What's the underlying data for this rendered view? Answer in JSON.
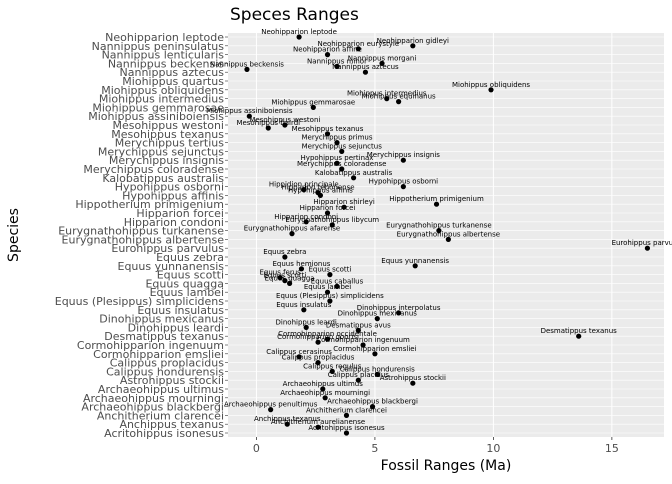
{
  "chart_data": {
    "type": "scatter",
    "title": "Speces Ranges",
    "xlabel": "Fossil Ranges (Ma)",
    "ylabel": "Species",
    "xlim": [
      -1.2,
      17.2
    ],
    "x_ticks": [
      0,
      5,
      10,
      15
    ],
    "grid": true,
    "legend": "none",
    "point_color": "#000000",
    "panel_color": "#ebebeb",
    "grid_color": "#ffffff",
    "categories": [
      "Neohipparion leptode",
      "Nannippus peninsulatus",
      "Nannippus lenticularis",
      "Nannippus beckensis",
      "Nannippus aztecus",
      "Miohippus quartus",
      "Miohippus obliquidens",
      "Miohippus intermedius",
      "Miohippus gemmarosae",
      "Miohippus assiniboiensis",
      "Mesohippus westoni",
      "Mesohippus texanus",
      "Merychippus tertius",
      "Merychippus sejunctus",
      "Merychippus insignis",
      "Merychippus coloradense",
      "Kalobatippus australis",
      "Hypohippus osborni",
      "Hypohippus affinis",
      "Hippotherium primigenium",
      "Hipparion forcei",
      "Hipparion condoni",
      "Eurygnathohippus turkanense",
      "Eurygnathohippus albertense",
      "Eurohippus parvulus",
      "Equus zebra",
      "Equus yunnanensis",
      "Equus scotti",
      "Equus quagga",
      "Equus lambei",
      "Equus (Plesippus) simplicidens",
      "Equus insulatus",
      "Dinohippus mexicanus",
      "Dinohippus leardi",
      "Desmatippus texanus",
      "Cormohipparion ingenuum",
      "Cormohipparion emsliei",
      "Calippus proplacidus",
      "Calippus hondurensis",
      "Astrohippus stockii",
      "Archaeohippus ultimus",
      "Archaeohippus mourningi",
      "Archaeohippus blackbergi",
      "Anchitherium clarencei",
      "Anchippus texanus",
      "Acritohippus isonesus"
    ],
    "points": [
      {
        "label": "Neohipparion leptode",
        "x": 1.8
      },
      {
        "label": "Neohipparion gidleyi",
        "x": 6.6
      },
      {
        "label": "Neohipparion eurystyle",
        "x": 4.3
      },
      {
        "label": "Neohipparion affine",
        "x": 3.0
      },
      {
        "label": "Nannippus morgani",
        "x": 5.3
      },
      {
        "label": "Nannippus minor",
        "x": 3.4
      },
      {
        "label": "Nannippus aztecus",
        "x": 4.6
      },
      {
        "label": "Nannippus beckensis",
        "x": -0.4
      },
      {
        "label": "Miohippus obliquidens",
        "x": 9.9
      },
      {
        "label": "Miohippus intermedius",
        "x": 5.5
      },
      {
        "label": "Miohippus equinanus",
        "x": 6.0
      },
      {
        "label": "Miohippus gemmarosae",
        "x": 2.4
      },
      {
        "label": "Miohippus assiniboiensis",
        "x": -0.3
      },
      {
        "label": "Mesohippus westoni",
        "x": 1.2
      },
      {
        "label": "Mesohippus texanus",
        "x": 3.0
      },
      {
        "label": "Mesohippus bairdi",
        "x": 0.5
      },
      {
        "label": "Merychippus sejunctus",
        "x": 3.6
      },
      {
        "label": "Merychippus insignis",
        "x": 6.2
      },
      {
        "label": "Merychippus primus",
        "x": 3.4
      },
      {
        "label": "Merychippus coloradense",
        "x": 3.6
      },
      {
        "label": "Kalobatippus australis",
        "x": 4.1
      },
      {
        "label": "Hypohippus pertinax",
        "x": 3.4
      },
      {
        "label": "Hypohippus osborni",
        "x": 6.2
      },
      {
        "label": "Hypohippus affinis",
        "x": 2.7
      },
      {
        "label": "Hippotherium primigenium",
        "x": 7.6
      },
      {
        "label": "Hippidion principale",
        "x": 2.0
      },
      {
        "label": "Hipparion tehonense",
        "x": 2.6
      },
      {
        "label": "Hipparion forcei",
        "x": 3.0
      },
      {
        "label": "Hipparion condoni",
        "x": 2.1
      },
      {
        "label": "Hipparion shirleyi",
        "x": 3.7
      },
      {
        "label": "Eurygnathohippus turkanense",
        "x": 7.7
      },
      {
        "label": "Eurygnathohippus albertense",
        "x": 8.1
      },
      {
        "label": "Eurygnathohippus libycum",
        "x": 3.2
      },
      {
        "label": "Eurygnathohippus afarense",
        "x": 1.5
      },
      {
        "label": "Eurohippus parvulus",
        "x": 16.5
      },
      {
        "label": "Equus zebra",
        "x": 1.2
      },
      {
        "label": "Equus yunnanensis",
        "x": 6.7
      },
      {
        "label": "Equus scotti",
        "x": 3.1
      },
      {
        "label": "Equus quagga",
        "x": 1.4
      },
      {
        "label": "Equus hemionus",
        "x": 1.9
      },
      {
        "label": "Equus lambei",
        "x": 3.0
      },
      {
        "label": "Equus ferus",
        "x": 1.0
      },
      {
        "label": "Equus caballus",
        "x": 3.4
      },
      {
        "label": "Equus (Plesippus) simplicidens",
        "x": 3.1
      },
      {
        "label": "Equus scotti",
        "x": 1.2
      },
      {
        "label": "Equus insulatus",
        "x": 2.0
      },
      {
        "label": "Dinohippus mexicanus",
        "x": 5.1
      },
      {
        "label": "Dinohippus interpolatus",
        "x": 6.0
      },
      {
        "label": "Dinohippus leardi",
        "x": 2.1
      },
      {
        "label": "Desmatippus texanus",
        "x": 13.6
      },
      {
        "label": "Desmatippus avus",
        "x": 4.3
      },
      {
        "label": "Cormohipparion occidentale",
        "x": 3.0
      },
      {
        "label": "Cormohipparion goorisi",
        "x": 2.6
      },
      {
        "label": "Cormohipparion ingenuum",
        "x": 4.5
      },
      {
        "label": "Cormohipparion emsliei",
        "x": 5.0
      },
      {
        "label": "Calippus cerasinus",
        "x": 1.8
      },
      {
        "label": "Calippus proplacidus",
        "x": 2.6
      },
      {
        "label": "Calippus regulus",
        "x": 3.2
      },
      {
        "label": "Calippus hondurensis",
        "x": 5.1
      },
      {
        "label": "Calippus placidus",
        "x": 4.3
      },
      {
        "label": "Astrohippus stockii",
        "x": 6.6
      },
      {
        "label": "Archaeohippus ultimus",
        "x": 2.8
      },
      {
        "label": "Archaeohippus mourningi",
        "x": 2.9
      },
      {
        "label": "Archaeohippus blackbergi",
        "x": 4.9
      },
      {
        "label": "Archaeohippus penultimus",
        "x": 0.6
      },
      {
        "label": "Anchitherium clarencei",
        "x": 3.8
      },
      {
        "label": "Anchippus texanus",
        "x": 1.3
      },
      {
        "label": "Anchitherium aurelianense",
        "x": 2.6
      },
      {
        "label": "Acritohippus isonesus",
        "x": 3.8
      }
    ]
  }
}
